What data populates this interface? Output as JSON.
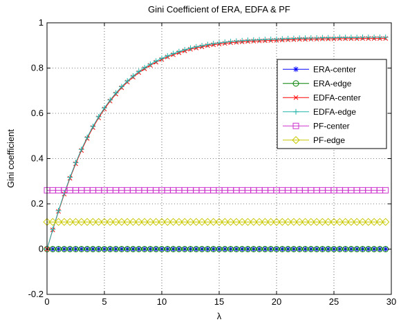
{
  "chart_data": {
    "type": "line",
    "title": "Gini Coefficient of ERA, EDFA & PF",
    "xlabel": "λ",
    "ylabel": "Gini coefficient",
    "xlim": [
      0,
      30
    ],
    "ylim": [
      -0.2,
      1
    ],
    "xticks": [
      "0",
      "5",
      "10",
      "15",
      "20",
      "25",
      "30"
    ],
    "yticks": [
      "-0.2",
      "0",
      "0.2",
      "0.4",
      "0.6",
      "0.8",
      "1"
    ],
    "grid": true,
    "legend_position": "right-upper",
    "x": [
      0.0,
      0.5,
      1.0,
      1.5,
      2.0,
      2.5,
      3.0,
      3.5,
      4.0,
      4.5,
      5.0,
      5.5,
      6.0,
      6.5,
      7.0,
      7.5,
      8.0,
      8.5,
      9.0,
      9.5,
      10.0,
      10.5,
      11.0,
      11.5,
      12.0,
      12.5,
      13.0,
      13.5,
      14.0,
      14.5,
      15.0,
      15.5,
      16.0,
      16.5,
      17.0,
      17.5,
      18.0,
      18.5,
      19.0,
      19.5,
      20.0,
      20.5,
      21.0,
      21.5,
      22.0,
      22.5,
      23.0,
      23.5,
      24.0,
      24.5,
      25.0,
      25.5,
      26.0,
      26.5,
      27.0,
      27.5,
      28.0,
      28.5,
      29.0,
      29.5
    ],
    "series": [
      {
        "name": "ERA-center",
        "color": "#0000ff",
        "marker": "asterisk",
        "values": [
          0.0,
          0.0,
          0.0,
          0.0,
          0.0,
          0.0,
          0.0,
          0.0,
          0.0,
          0.0,
          0.0,
          0.0,
          0.0,
          0.0,
          0.0,
          0.0,
          0.0,
          0.0,
          0.0,
          0.0,
          0.0,
          0.0,
          0.0,
          0.0,
          0.0,
          0.0,
          0.0,
          0.0,
          0.0,
          0.0,
          0.0,
          0.0,
          0.0,
          0.0,
          0.0,
          0.0,
          0.0,
          0.0,
          0.0,
          0.0,
          0.0,
          0.0,
          0.0,
          0.0,
          0.0,
          0.0,
          0.0,
          0.0,
          0.0,
          0.0,
          0.0,
          0.0,
          0.0,
          0.0,
          0.0,
          0.0,
          0.0,
          0.0,
          0.0,
          0.0
        ]
      },
      {
        "name": "ERA-edge",
        "color": "#008000",
        "marker": "circle",
        "values": [
          0.0,
          0.0,
          0.0,
          0.0,
          0.0,
          0.0,
          0.0,
          0.0,
          0.0,
          0.0,
          0.0,
          0.0,
          0.0,
          0.0,
          0.0,
          0.0,
          0.0,
          0.0,
          0.0,
          0.0,
          0.0,
          0.0,
          0.0,
          0.0,
          0.0,
          0.0,
          0.0,
          0.0,
          0.0,
          0.0,
          0.0,
          0.0,
          0.0,
          0.0,
          0.0,
          0.0,
          0.0,
          0.0,
          0.0,
          0.0,
          0.0,
          0.0,
          0.0,
          0.0,
          0.0,
          0.0,
          0.0,
          0.0,
          0.0,
          0.0,
          0.0,
          0.0,
          0.0,
          0.0,
          0.0,
          0.0,
          0.0,
          0.0,
          0.0,
          0.0
        ]
      },
      {
        "name": "EDFA-center",
        "color": "#ff0000",
        "marker": "x",
        "values": [
          0.0,
          0.085,
          0.167,
          0.243,
          0.313,
          0.377,
          0.436,
          0.489,
          0.537,
          0.58,
          0.619,
          0.654,
          0.685,
          0.713,
          0.738,
          0.76,
          0.78,
          0.797,
          0.812,
          0.826,
          0.838,
          0.849,
          0.859,
          0.868,
          0.876,
          0.883,
          0.889,
          0.894,
          0.899,
          0.903,
          0.906,
          0.909,
          0.912,
          0.914,
          0.916,
          0.918,
          0.919,
          0.92,
          0.921,
          0.922,
          0.923,
          0.924,
          0.925,
          0.926,
          0.927,
          0.927,
          0.928,
          0.928,
          0.929,
          0.929,
          0.929,
          0.93,
          0.93,
          0.93,
          0.93,
          0.931,
          0.931,
          0.931,
          0.931,
          0.931
        ]
      },
      {
        "name": "EDFA-edge",
        "color": "#20b2aa",
        "marker": "plus",
        "values": [
          0.0,
          0.087,
          0.17,
          0.247,
          0.317,
          0.382,
          0.441,
          0.494,
          0.542,
          0.585,
          0.624,
          0.659,
          0.69,
          0.718,
          0.743,
          0.765,
          0.785,
          0.802,
          0.817,
          0.831,
          0.843,
          0.854,
          0.864,
          0.873,
          0.881,
          0.888,
          0.894,
          0.899,
          0.904,
          0.908,
          0.911,
          0.914,
          0.917,
          0.919,
          0.921,
          0.923,
          0.924,
          0.925,
          0.926,
          0.927,
          0.928,
          0.929,
          0.93,
          0.931,
          0.932,
          0.932,
          0.933,
          0.933,
          0.934,
          0.934,
          0.934,
          0.935,
          0.935,
          0.935,
          0.935,
          0.936,
          0.936,
          0.936,
          0.936,
          0.936
        ]
      },
      {
        "name": "PF-center",
        "color": "#cc33cc",
        "marker": "square",
        "values": [
          0.26,
          0.26,
          0.26,
          0.26,
          0.26,
          0.26,
          0.26,
          0.26,
          0.26,
          0.26,
          0.26,
          0.26,
          0.26,
          0.26,
          0.26,
          0.26,
          0.26,
          0.26,
          0.26,
          0.26,
          0.26,
          0.26,
          0.26,
          0.26,
          0.26,
          0.26,
          0.26,
          0.26,
          0.26,
          0.26,
          0.26,
          0.26,
          0.26,
          0.26,
          0.26,
          0.26,
          0.26,
          0.26,
          0.26,
          0.26,
          0.26,
          0.26,
          0.26,
          0.26,
          0.26,
          0.26,
          0.26,
          0.26,
          0.26,
          0.26,
          0.26,
          0.26,
          0.26,
          0.26,
          0.26,
          0.26,
          0.26,
          0.26,
          0.26,
          0.26
        ]
      },
      {
        "name": "PF-edge",
        "color": "#c8c800",
        "marker": "diamond",
        "values": [
          0.12,
          0.12,
          0.12,
          0.12,
          0.12,
          0.12,
          0.12,
          0.12,
          0.12,
          0.12,
          0.12,
          0.12,
          0.12,
          0.12,
          0.12,
          0.12,
          0.12,
          0.12,
          0.12,
          0.12,
          0.12,
          0.12,
          0.12,
          0.12,
          0.12,
          0.12,
          0.12,
          0.12,
          0.12,
          0.12,
          0.12,
          0.12,
          0.12,
          0.12,
          0.12,
          0.12,
          0.12,
          0.12,
          0.12,
          0.12,
          0.12,
          0.12,
          0.12,
          0.12,
          0.12,
          0.12,
          0.12,
          0.12,
          0.12,
          0.12,
          0.12,
          0.12,
          0.12,
          0.12,
          0.12,
          0.12,
          0.12,
          0.12,
          0.12,
          0.12
        ]
      }
    ]
  }
}
